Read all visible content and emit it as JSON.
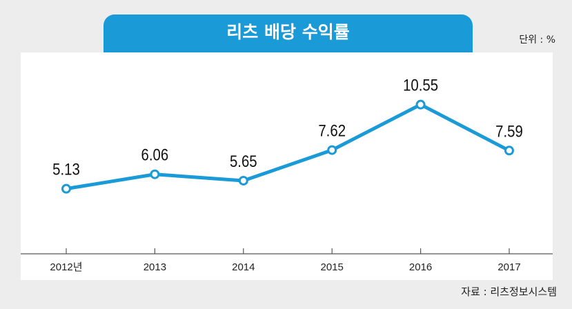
{
  "chart_data": {
    "type": "line",
    "title": "리츠 배당 수익률",
    "unit_label": "단위 : %",
    "source": "자료 : 리츠정보시스템",
    "categories": [
      "2012년",
      "2013",
      "2014",
      "2015",
      "2016",
      "2017"
    ],
    "values": [
      5.13,
      6.06,
      5.65,
      7.62,
      10.55,
      7.59
    ],
    "value_labels": [
      "5.13",
      "6.06",
      "5.65",
      "7.62",
      "10.55",
      "7.59"
    ],
    "ylim": [
      2.36,
      11.69
    ],
    "grid": false,
    "legend": "none",
    "line_color": "#1a9ad7",
    "title_color": "#1a9ad7"
  }
}
